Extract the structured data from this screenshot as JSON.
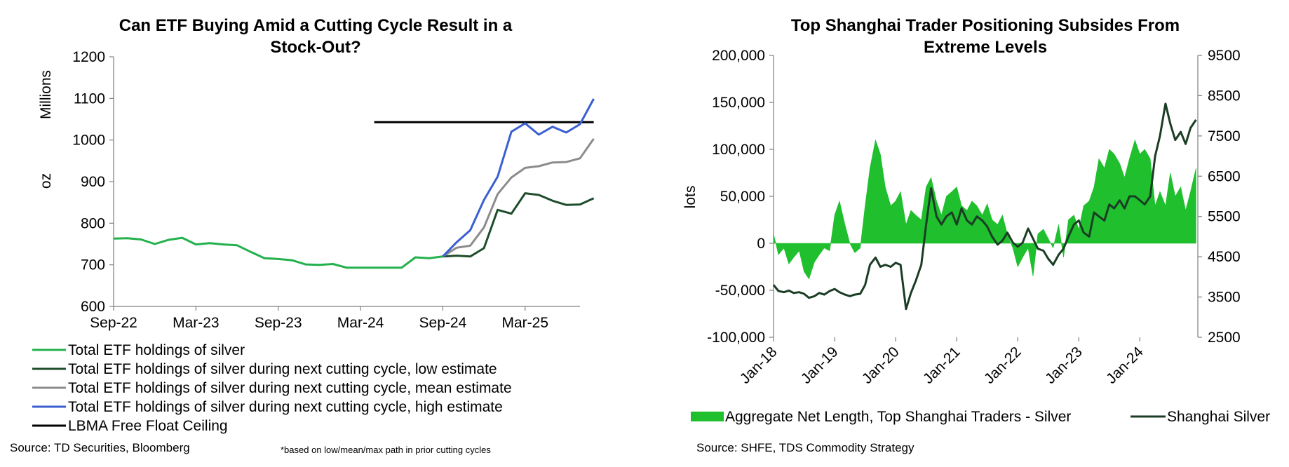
{
  "colors": {
    "total": "#22B14C",
    "low": "#1E4D2B",
    "mean": "#8C8C8C",
    "high": "#3A5FD0",
    "ceiling": "#000000",
    "net_length": "#1FBF2E",
    "silver_price": "#1A3D24",
    "axis": "#7F7F7F"
  },
  "chart_data": [
    {
      "type": "line",
      "title_lines": [
        "Can ETF Buying Amid a Cutting Cycle Result in a",
        "Stock-Out?"
      ],
      "ylabel": "oz",
      "units_label": "Millions",
      "ylim": [
        600,
        1200
      ],
      "yticks": [
        600,
        700,
        800,
        900,
        1000,
        1100,
        1200
      ],
      "xlim": [
        0,
        34
      ],
      "xticks": [
        {
          "x": 0,
          "label": "Sep-22"
        },
        {
          "x": 6,
          "label": "Mar-23"
        },
        {
          "x": 12,
          "label": "Sep-23"
        },
        {
          "x": 18,
          "label": "Mar-24"
        },
        {
          "x": 24,
          "label": "Sep-24"
        },
        {
          "x": 30,
          "label": "Mar-25"
        }
      ],
      "series": [
        {
          "key": "total",
          "name": "Total ETF holdings of silver",
          "points": [
            [
              0,
              763
            ],
            [
              1,
              764
            ],
            [
              2,
              761
            ],
            [
              3,
              750
            ],
            [
              4,
              760
            ],
            [
              5,
              765
            ],
            [
              6,
              749
            ],
            [
              7,
              752
            ],
            [
              8,
              749
            ],
            [
              9,
              747
            ],
            [
              10,
              731
            ],
            [
              11,
              716
            ],
            [
              12,
              714
            ],
            [
              13,
              711
            ],
            [
              14,
              701
            ],
            [
              15,
              700
            ],
            [
              16,
              702
            ],
            [
              17,
              693
            ],
            [
              18,
              693
            ],
            [
              19,
              693
            ],
            [
              20,
              693
            ],
            [
              21,
              693
            ],
            [
              22,
              718
            ],
            [
              23,
              716
            ],
            [
              24,
              720
            ]
          ]
        },
        {
          "key": "low",
          "name": "Total ETF holdings of silver during next cutting cycle, low estimate",
          "points": [
            [
              24,
              720
            ],
            [
              25,
              722
            ],
            [
              26,
              720
            ],
            [
              27,
              740
            ],
            [
              28,
              832
            ],
            [
              29,
              823
            ],
            [
              30,
              872
            ],
            [
              31,
              868
            ],
            [
              32,
              854
            ],
            [
              33,
              844
            ],
            [
              34,
              845
            ],
            [
              35,
              860
            ]
          ]
        },
        {
          "key": "mean",
          "name": "Total ETF holdings of silver during next cutting cycle, mean estimate",
          "points": [
            [
              24,
              720
            ],
            [
              25,
              741
            ],
            [
              26,
              746
            ],
            [
              27,
              790
            ],
            [
              28,
              870
            ],
            [
              29,
              910
            ],
            [
              30,
              933
            ],
            [
              31,
              937
            ],
            [
              32,
              946
            ],
            [
              33,
              947
            ],
            [
              34,
              956
            ],
            [
              35,
              1003
            ]
          ]
        },
        {
          "key": "high",
          "name": "Total ETF holdings of silver during next cutting cycle, high estimate",
          "points": [
            [
              24,
              720
            ],
            [
              25,
              754
            ],
            [
              26,
              783
            ],
            [
              27,
              856
            ],
            [
              28,
              912
            ],
            [
              29,
              1020
            ],
            [
              30,
              1040
            ],
            [
              31,
              1013
            ],
            [
              32,
              1032
            ],
            [
              33,
              1018
            ],
            [
              34,
              1038
            ],
            [
              35,
              1099
            ]
          ]
        },
        {
          "key": "ceiling",
          "name": "LBMA Free Float Ceiling",
          "points": [
            [
              19,
              1043
            ],
            [
              35,
              1043
            ]
          ]
        }
      ],
      "source": "Source: TD Securities, Bloomberg",
      "note": "*based on low/mean/max path in prior cutting cycles"
    },
    {
      "type": "area+line",
      "title_lines": [
        "Top Shanghai Trader Positioning Subsides From",
        "Extreme Levels"
      ],
      "ylabel": "lots",
      "ylim": [
        -100000,
        200000
      ],
      "yticks": [
        -100000,
        -50000,
        0,
        50000,
        100000,
        150000,
        200000
      ],
      "y2lim": [
        2500,
        9500
      ],
      "y2ticks": [
        2500,
        3500,
        4500,
        5500,
        6500,
        7500,
        8500,
        9500
      ],
      "xlim": [
        2018.0,
        2024.95
      ],
      "xticks": [
        {
          "x": 2018.0,
          "label": "Jan-18"
        },
        {
          "x": 2019.0,
          "label": "Jan-19"
        },
        {
          "x": 2020.0,
          "label": "Jan-20"
        },
        {
          "x": 2021.0,
          "label": "Jan-21"
        },
        {
          "x": 2022.0,
          "label": "Jan-22"
        },
        {
          "x": 2023.0,
          "label": "Jan-23"
        },
        {
          "x": 2024.0,
          "label": "Jan-24"
        }
      ],
      "series": [
        {
          "key": "net_length",
          "name": "Aggregate Net Length, Top Shanghai Traders - Silver",
          "points": [
            [
              2018.0,
              10000
            ],
            [
              2018.08,
              -12000
            ],
            [
              2018.17,
              -5000
            ],
            [
              2018.25,
              -22000
            ],
            [
              2018.33,
              -15000
            ],
            [
              2018.42,
              -8000
            ],
            [
              2018.5,
              -30000
            ],
            [
              2018.58,
              -38000
            ],
            [
              2018.67,
              -20000
            ],
            [
              2018.75,
              -12000
            ],
            [
              2018.83,
              -5000
            ],
            [
              2018.92,
              -8000
            ],
            [
              2019.0,
              30000
            ],
            [
              2019.08,
              45000
            ],
            [
              2019.17,
              20000
            ],
            [
              2019.25,
              0
            ],
            [
              2019.33,
              -10000
            ],
            [
              2019.42,
              -5000
            ],
            [
              2019.5,
              40000
            ],
            [
              2019.58,
              80000
            ],
            [
              2019.67,
              110000
            ],
            [
              2019.75,
              95000
            ],
            [
              2019.83,
              60000
            ],
            [
              2019.92,
              40000
            ],
            [
              2020.0,
              45000
            ],
            [
              2020.08,
              55000
            ],
            [
              2020.17,
              20000
            ],
            [
              2020.25,
              35000
            ],
            [
              2020.33,
              30000
            ],
            [
              2020.42,
              25000
            ],
            [
              2020.5,
              60000
            ],
            [
              2020.58,
              70000
            ],
            [
              2020.67,
              45000
            ],
            [
              2020.75,
              30000
            ],
            [
              2020.83,
              50000
            ],
            [
              2020.92,
              55000
            ],
            [
              2021.0,
              60000
            ],
            [
              2021.08,
              40000
            ],
            [
              2021.17,
              35000
            ],
            [
              2021.25,
              45000
            ],
            [
              2021.33,
              40000
            ],
            [
              2021.42,
              30000
            ],
            [
              2021.5,
              42000
            ],
            [
              2021.58,
              25000
            ],
            [
              2021.67,
              20000
            ],
            [
              2021.75,
              30000
            ],
            [
              2021.83,
              10000
            ],
            [
              2021.92,
              -5000
            ],
            [
              2022.0,
              -25000
            ],
            [
              2022.08,
              -15000
            ],
            [
              2022.17,
              -5000
            ],
            [
              2022.25,
              -35000
            ],
            [
              2022.33,
              10000
            ],
            [
              2022.42,
              15000
            ],
            [
              2022.5,
              5000
            ],
            [
              2022.58,
              -5000
            ],
            [
              2022.67,
              20000
            ],
            [
              2022.75,
              -15000
            ],
            [
              2022.83,
              25000
            ],
            [
              2022.92,
              30000
            ],
            [
              2023.0,
              15000
            ],
            [
              2023.08,
              40000
            ],
            [
              2023.17,
              45000
            ],
            [
              2023.25,
              60000
            ],
            [
              2023.33,
              90000
            ],
            [
              2023.42,
              80000
            ],
            [
              2023.5,
              100000
            ],
            [
              2023.58,
              95000
            ],
            [
              2023.67,
              85000
            ],
            [
              2023.75,
              70000
            ],
            [
              2023.83,
              90000
            ],
            [
              2023.92,
              110000
            ],
            [
              2024.0,
              95000
            ],
            [
              2024.08,
              100000
            ],
            [
              2024.17,
              90000
            ],
            [
              2024.25,
              40000
            ],
            [
              2024.33,
              55000
            ],
            [
              2024.42,
              40000
            ],
            [
              2024.5,
              75000
            ],
            [
              2024.58,
              50000
            ],
            [
              2024.67,
              60000
            ],
            [
              2024.75,
              35000
            ],
            [
              2024.83,
              55000
            ],
            [
              2024.92,
              80000
            ]
          ]
        },
        {
          "key": "silver_price",
          "name": "Shanghai Silver",
          "axis": "right",
          "points": [
            [
              2018.0,
              3800
            ],
            [
              2018.08,
              3650
            ],
            [
              2018.17,
              3620
            ],
            [
              2018.25,
              3660
            ],
            [
              2018.33,
              3600
            ],
            [
              2018.42,
              3620
            ],
            [
              2018.5,
              3580
            ],
            [
              2018.58,
              3480
            ],
            [
              2018.67,
              3520
            ],
            [
              2018.75,
              3600
            ],
            [
              2018.83,
              3560
            ],
            [
              2018.92,
              3650
            ],
            [
              2019.0,
              3700
            ],
            [
              2019.08,
              3620
            ],
            [
              2019.17,
              3560
            ],
            [
              2019.25,
              3520
            ],
            [
              2019.33,
              3560
            ],
            [
              2019.42,
              3580
            ],
            [
              2019.5,
              3800
            ],
            [
              2019.58,
              4300
            ],
            [
              2019.67,
              4480
            ],
            [
              2019.75,
              4250
            ],
            [
              2019.83,
              4300
            ],
            [
              2019.92,
              4250
            ],
            [
              2020.0,
              4350
            ],
            [
              2020.08,
              4300
            ],
            [
              2020.17,
              3200
            ],
            [
              2020.25,
              3600
            ],
            [
              2020.33,
              3900
            ],
            [
              2020.42,
              4300
            ],
            [
              2020.5,
              5300
            ],
            [
              2020.58,
              6200
            ],
            [
              2020.67,
              5500
            ],
            [
              2020.75,
              5300
            ],
            [
              2020.83,
              5500
            ],
            [
              2020.92,
              5600
            ],
            [
              2021.0,
              5300
            ],
            [
              2021.08,
              5700
            ],
            [
              2021.17,
              5400
            ],
            [
              2021.25,
              5300
            ],
            [
              2021.33,
              5500
            ],
            [
              2021.42,
              5400
            ],
            [
              2021.5,
              5250
            ],
            [
              2021.58,
              5000
            ],
            [
              2021.67,
              4800
            ],
            [
              2021.75,
              4900
            ],
            [
              2021.83,
              5100
            ],
            [
              2021.92,
              4850
            ],
            [
              2022.0,
              4750
            ],
            [
              2022.08,
              4850
            ],
            [
              2022.17,
              5200
            ],
            [
              2022.25,
              4950
            ],
            [
              2022.33,
              4700
            ],
            [
              2022.42,
              4650
            ],
            [
              2022.5,
              4450
            ],
            [
              2022.58,
              4300
            ],
            [
              2022.67,
              4550
            ],
            [
              2022.75,
              4700
            ],
            [
              2022.83,
              5000
            ],
            [
              2022.92,
              5300
            ],
            [
              2023.0,
              5400
            ],
            [
              2023.08,
              5100
            ],
            [
              2023.17,
              5000
            ],
            [
              2023.25,
              5600
            ],
            [
              2023.33,
              5500
            ],
            [
              2023.42,
              5400
            ],
            [
              2023.5,
              5800
            ],
            [
              2023.58,
              5700
            ],
            [
              2023.67,
              5900
            ],
            [
              2023.75,
              5700
            ],
            [
              2023.83,
              6000
            ],
            [
              2023.92,
              6000
            ],
            [
              2024.0,
              5900
            ],
            [
              2024.08,
              5800
            ],
            [
              2024.17,
              6000
            ],
            [
              2024.25,
              7000
            ],
            [
              2024.33,
              7500
            ],
            [
              2024.42,
              8300
            ],
            [
              2024.5,
              7800
            ],
            [
              2024.58,
              7400
            ],
            [
              2024.67,
              7600
            ],
            [
              2024.75,
              7300
            ],
            [
              2024.83,
              7700
            ],
            [
              2024.92,
              7900
            ]
          ]
        }
      ],
      "source": "Source: SHFE, TDS Commodity Strategy"
    }
  ]
}
